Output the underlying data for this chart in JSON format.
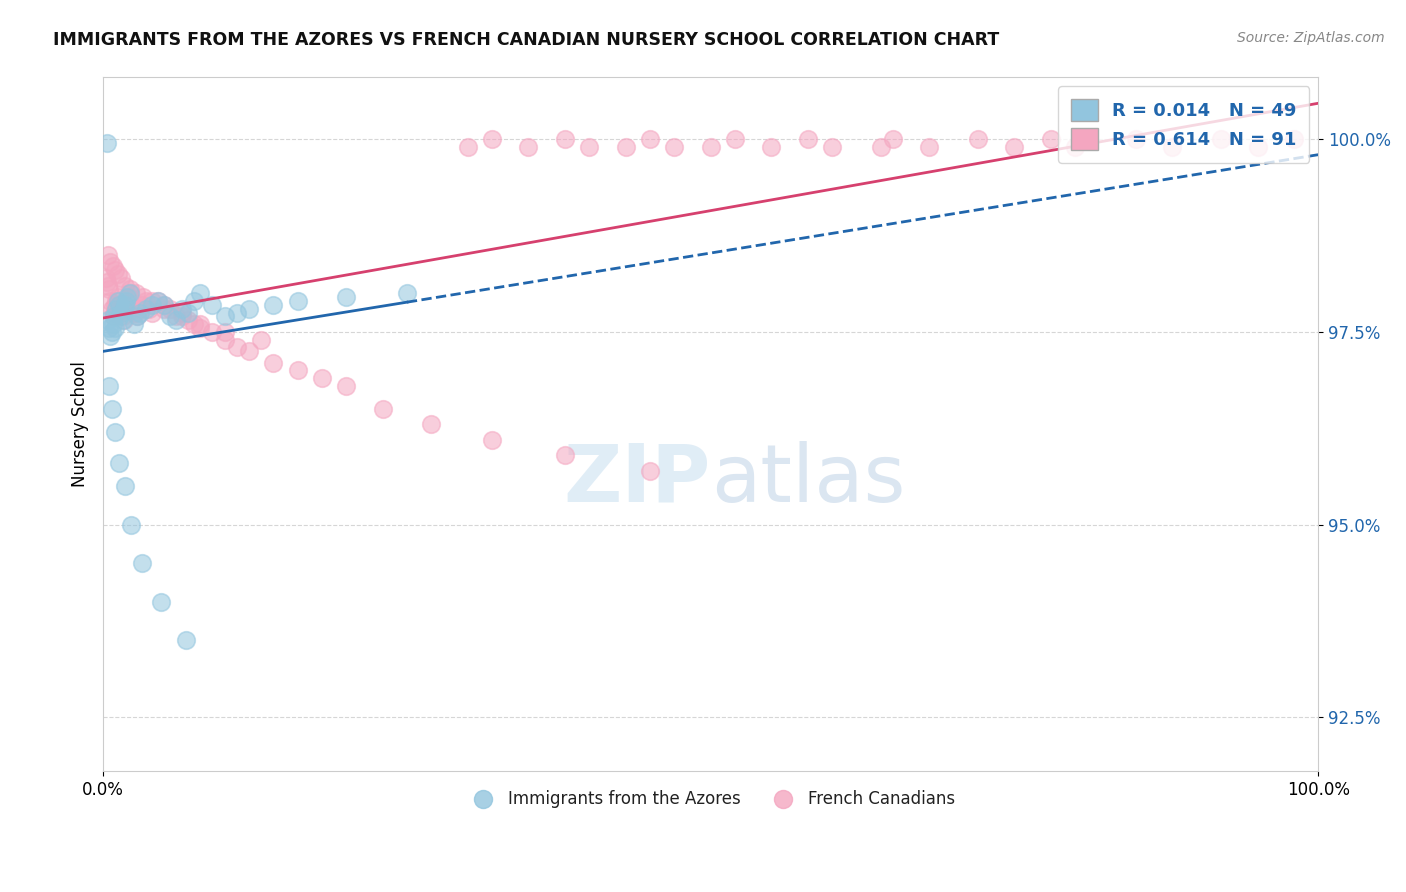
{
  "title": "IMMIGRANTS FROM THE AZORES VS FRENCH CANADIAN NURSERY SCHOOL CORRELATION CHART",
  "source": "Source: ZipAtlas.com",
  "ylabel": "Nursery School",
  "legend_labels": [
    "Immigrants from the Azores",
    "French Canadians"
  ],
  "blue_R": "0.014",
  "blue_N": "49",
  "pink_R": "0.614",
  "pink_N": "91",
  "blue_color": "#92c5de",
  "pink_color": "#f4a6c0",
  "blue_edge_color": "#4393c3",
  "pink_edge_color": "#e8709a",
  "blue_line_color": "#2166ac",
  "pink_line_color": "#d6406e",
  "xmin": 0.0,
  "xmax": 100.0,
  "ymin": 91.8,
  "ymax": 100.8,
  "ytick_vals": [
    92.5,
    95.0,
    97.5,
    100.0
  ],
  "blue_scatter_x": [
    0.3,
    0.4,
    0.5,
    0.6,
    0.7,
    0.8,
    0.9,
    1.0,
    1.1,
    1.2,
    1.3,
    1.4,
    1.5,
    1.6,
    1.7,
    1.8,
    1.9,
    2.0,
    2.2,
    2.5,
    2.8,
    3.0,
    3.5,
    4.0,
    4.5,
    5.0,
    5.5,
    6.0,
    6.5,
    7.0,
    7.5,
    8.0,
    9.0,
    10.0,
    11.0,
    12.0,
    14.0,
    16.0,
    20.0,
    25.0,
    0.5,
    0.7,
    1.0,
    1.3,
    1.8,
    2.3,
    3.2,
    4.8,
    6.8
  ],
  "blue_scatter_y": [
    99.95,
    97.65,
    97.55,
    97.45,
    97.5,
    97.6,
    97.7,
    97.55,
    97.8,
    97.9,
    97.85,
    97.7,
    97.75,
    97.65,
    97.8,
    97.85,
    97.9,
    97.95,
    98.0,
    97.6,
    97.7,
    97.75,
    97.8,
    97.85,
    97.9,
    97.85,
    97.7,
    97.65,
    97.8,
    97.75,
    97.9,
    98.0,
    97.85,
    97.7,
    97.75,
    97.8,
    97.85,
    97.9,
    97.95,
    98.0,
    96.8,
    96.5,
    96.2,
    95.8,
    95.5,
    95.0,
    94.5,
    94.0,
    93.5
  ],
  "pink_scatter_x": [
    0.2,
    0.3,
    0.4,
    0.5,
    0.6,
    0.7,
    0.8,
    0.9,
    1.0,
    1.1,
    1.2,
    1.3,
    1.4,
    1.5,
    1.6,
    1.7,
    1.8,
    1.9,
    2.0,
    2.1,
    2.2,
    2.4,
    2.6,
    2.8,
    3.0,
    3.2,
    3.5,
    3.8,
    4.0,
    4.5,
    5.0,
    5.5,
    6.0,
    6.5,
    7.0,
    7.5,
    8.0,
    9.0,
    10.0,
    11.0,
    12.0,
    14.0,
    16.0,
    18.0,
    20.0,
    23.0,
    27.0,
    32.0,
    38.0,
    45.0,
    32.0,
    38.0,
    45.0,
    52.0,
    58.0,
    65.0,
    72.0,
    78.0,
    85.0,
    92.0,
    98.0,
    30.0,
    35.0,
    40.0,
    43.0,
    47.0,
    50.0,
    55.0,
    60.0,
    64.0,
    68.0,
    75.0,
    80.0,
    88.0,
    95.0,
    0.4,
    0.6,
    0.8,
    1.0,
    1.2,
    1.5,
    1.8,
    2.2,
    2.7,
    3.3,
    4.0,
    5.0,
    6.5,
    8.0,
    10.0,
    13.0
  ],
  "pink_scatter_y": [
    98.2,
    98.15,
    98.1,
    98.05,
    97.9,
    97.8,
    97.7,
    97.75,
    97.85,
    97.9,
    97.95,
    97.85,
    97.75,
    97.8,
    97.7,
    97.65,
    97.8,
    97.85,
    97.9,
    97.95,
    98.0,
    97.8,
    97.75,
    97.7,
    97.8,
    97.85,
    97.9,
    97.8,
    97.75,
    97.9,
    97.85,
    97.8,
    97.7,
    97.75,
    97.65,
    97.6,
    97.55,
    97.5,
    97.4,
    97.3,
    97.25,
    97.1,
    97.0,
    96.9,
    96.8,
    96.5,
    96.3,
    96.1,
    95.9,
    95.7,
    100.0,
    100.0,
    100.0,
    100.0,
    100.0,
    100.0,
    100.0,
    100.0,
    100.0,
    100.0,
    100.0,
    99.9,
    99.9,
    99.9,
    99.9,
    99.9,
    99.9,
    99.9,
    99.9,
    99.9,
    99.9,
    99.9,
    99.9,
    99.9,
    99.9,
    98.5,
    98.4,
    98.35,
    98.3,
    98.25,
    98.2,
    98.1,
    98.05,
    98.0,
    97.95,
    97.9,
    97.8,
    97.7,
    97.6,
    97.5,
    97.4
  ]
}
